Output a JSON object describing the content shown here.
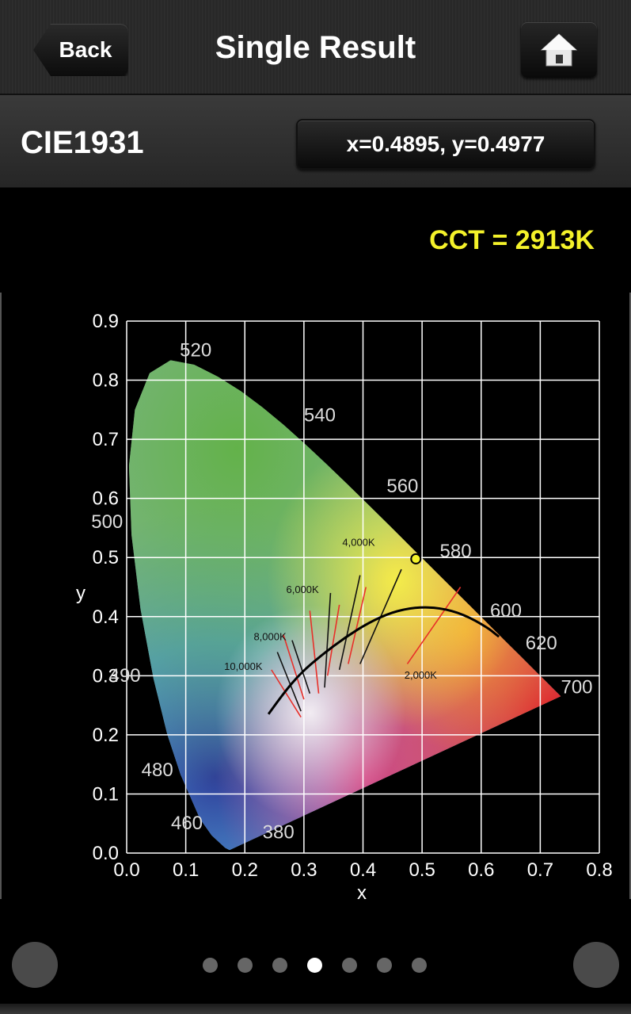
{
  "header": {
    "back_label": "Back",
    "title": "Single Result",
    "home_icon": "home-icon"
  },
  "subheader": {
    "mode_label": "CIE1931",
    "coordinates": "x=0.4895, y=0.4977"
  },
  "cct_text": "CCT = 2913K",
  "pager": {
    "count": 7,
    "active_index": 3
  },
  "chart_data": {
    "type": "scatter",
    "title": "",
    "xlabel": "x",
    "ylabel": "y",
    "xlim": [
      0.0,
      0.8
    ],
    "ylim": [
      0.0,
      0.9
    ],
    "grid": true,
    "x_ticks": [
      "0.0",
      "0.1",
      "0.2",
      "0.3",
      "0.4",
      "0.5",
      "0.6",
      "0.7",
      "0.8"
    ],
    "y_ticks": [
      "0.0",
      "0.1",
      "0.2",
      "0.3",
      "0.4",
      "0.5",
      "0.6",
      "0.7",
      "0.8",
      "0.9"
    ],
    "spectral_locus": [
      [
        0.1741,
        0.005
      ],
      [
        0.1666,
        0.0089
      ],
      [
        0.144,
        0.0297
      ],
      [
        0.1241,
        0.0578
      ],
      [
        0.0913,
        0.1327
      ],
      [
        0.0687,
        0.2007
      ],
      [
        0.0454,
        0.295
      ],
      [
        0.0235,
        0.4127
      ],
      [
        0.0082,
        0.5384
      ],
      [
        0.0039,
        0.6548
      ],
      [
        0.0139,
        0.7502
      ],
      [
        0.0389,
        0.812
      ],
      [
        0.0743,
        0.8338
      ],
      [
        0.1142,
        0.8262
      ],
      [
        0.1547,
        0.8059
      ],
      [
        0.1929,
        0.7816
      ],
      [
        0.2296,
        0.7543
      ],
      [
        0.2658,
        0.7243
      ],
      [
        0.3016,
        0.6923
      ],
      [
        0.3373,
        0.6589
      ],
      [
        0.3731,
        0.6245
      ],
      [
        0.4087,
        0.5896
      ],
      [
        0.4441,
        0.5547
      ],
      [
        0.4788,
        0.5202
      ],
      [
        0.5125,
        0.4866
      ],
      [
        0.5448,
        0.4544
      ],
      [
        0.5752,
        0.4242
      ],
      [
        0.6029,
        0.3965
      ],
      [
        0.627,
        0.3725
      ],
      [
        0.6482,
        0.3514
      ],
      [
        0.6658,
        0.334
      ],
      [
        0.6801,
        0.3197
      ],
      [
        0.6915,
        0.3083
      ],
      [
        0.7006,
        0.2993
      ],
      [
        0.7079,
        0.292
      ],
      [
        0.714,
        0.2859
      ],
      [
        0.7347,
        0.2653
      ]
    ],
    "wavelength_labels": [
      {
        "text": "520",
        "x": 0.09,
        "y": 0.84
      },
      {
        "text": "540",
        "x": 0.3,
        "y": 0.73
      },
      {
        "text": "560",
        "x": 0.44,
        "y": 0.61
      },
      {
        "text": "500",
        "x": -0.06,
        "y": 0.55
      },
      {
        "text": "580",
        "x": 0.53,
        "y": 0.5
      },
      {
        "text": "600",
        "x": 0.615,
        "y": 0.4
      },
      {
        "text": "490",
        "x": -0.03,
        "y": 0.29
      },
      {
        "text": "620",
        "x": 0.675,
        "y": 0.345
      },
      {
        "text": "700",
        "x": 0.735,
        "y": 0.27
      },
      {
        "text": "480",
        "x": 0.025,
        "y": 0.13
      },
      {
        "text": "460",
        "x": 0.075,
        "y": 0.04
      },
      {
        "text": "380",
        "x": 0.23,
        "y": 0.025
      }
    ],
    "planckian_locus": [
      [
        0.24,
        0.235
      ],
      [
        0.265,
        0.27
      ],
      [
        0.295,
        0.305
      ],
      [
        0.33,
        0.335
      ],
      [
        0.37,
        0.365
      ],
      [
        0.41,
        0.39
      ],
      [
        0.45,
        0.408
      ],
      [
        0.49,
        0.416
      ],
      [
        0.53,
        0.415
      ],
      [
        0.57,
        0.404
      ],
      [
        0.61,
        0.382
      ],
      [
        0.63,
        0.366
      ]
    ],
    "isotherm_labels": [
      {
        "text": "10,000K",
        "x": 0.165,
        "y": 0.31
      },
      {
        "text": "8,000K",
        "x": 0.215,
        "y": 0.36
      },
      {
        "text": "6,000K",
        "x": 0.27,
        "y": 0.44
      },
      {
        "text": "4,000K",
        "x": 0.365,
        "y": 0.52
      },
      {
        "text": "2,000K",
        "x": 0.47,
        "y": 0.295
      }
    ],
    "isotherms": [
      {
        "color": "red",
        "x1": 0.245,
        "y1": 0.31,
        "x2": 0.295,
        "y2": 0.23
      },
      {
        "color": "black",
        "x1": 0.255,
        "y1": 0.34,
        "x2": 0.295,
        "y2": 0.24
      },
      {
        "color": "red",
        "x1": 0.265,
        "y1": 0.37,
        "x2": 0.3,
        "y2": 0.26
      },
      {
        "color": "black",
        "x1": 0.28,
        "y1": 0.36,
        "x2": 0.31,
        "y2": 0.27
      },
      {
        "color": "red",
        "x1": 0.31,
        "y1": 0.41,
        "x2": 0.325,
        "y2": 0.27
      },
      {
        "color": "black",
        "x1": 0.345,
        "y1": 0.44,
        "x2": 0.335,
        "y2": 0.28
      },
      {
        "color": "red",
        "x1": 0.36,
        "y1": 0.42,
        "x2": 0.34,
        "y2": 0.3
      },
      {
        "color": "black",
        "x1": 0.395,
        "y1": 0.47,
        "x2": 0.36,
        "y2": 0.31
      },
      {
        "color": "red",
        "x1": 0.405,
        "y1": 0.45,
        "x2": 0.375,
        "y2": 0.32
      },
      {
        "color": "black",
        "x1": 0.465,
        "y1": 0.48,
        "x2": 0.395,
        "y2": 0.32
      },
      {
        "color": "red",
        "x1": 0.565,
        "y1": 0.45,
        "x2": 0.475,
        "y2": 0.32
      }
    ],
    "measured_point": {
      "x": 0.4895,
      "y": 0.4977
    }
  }
}
